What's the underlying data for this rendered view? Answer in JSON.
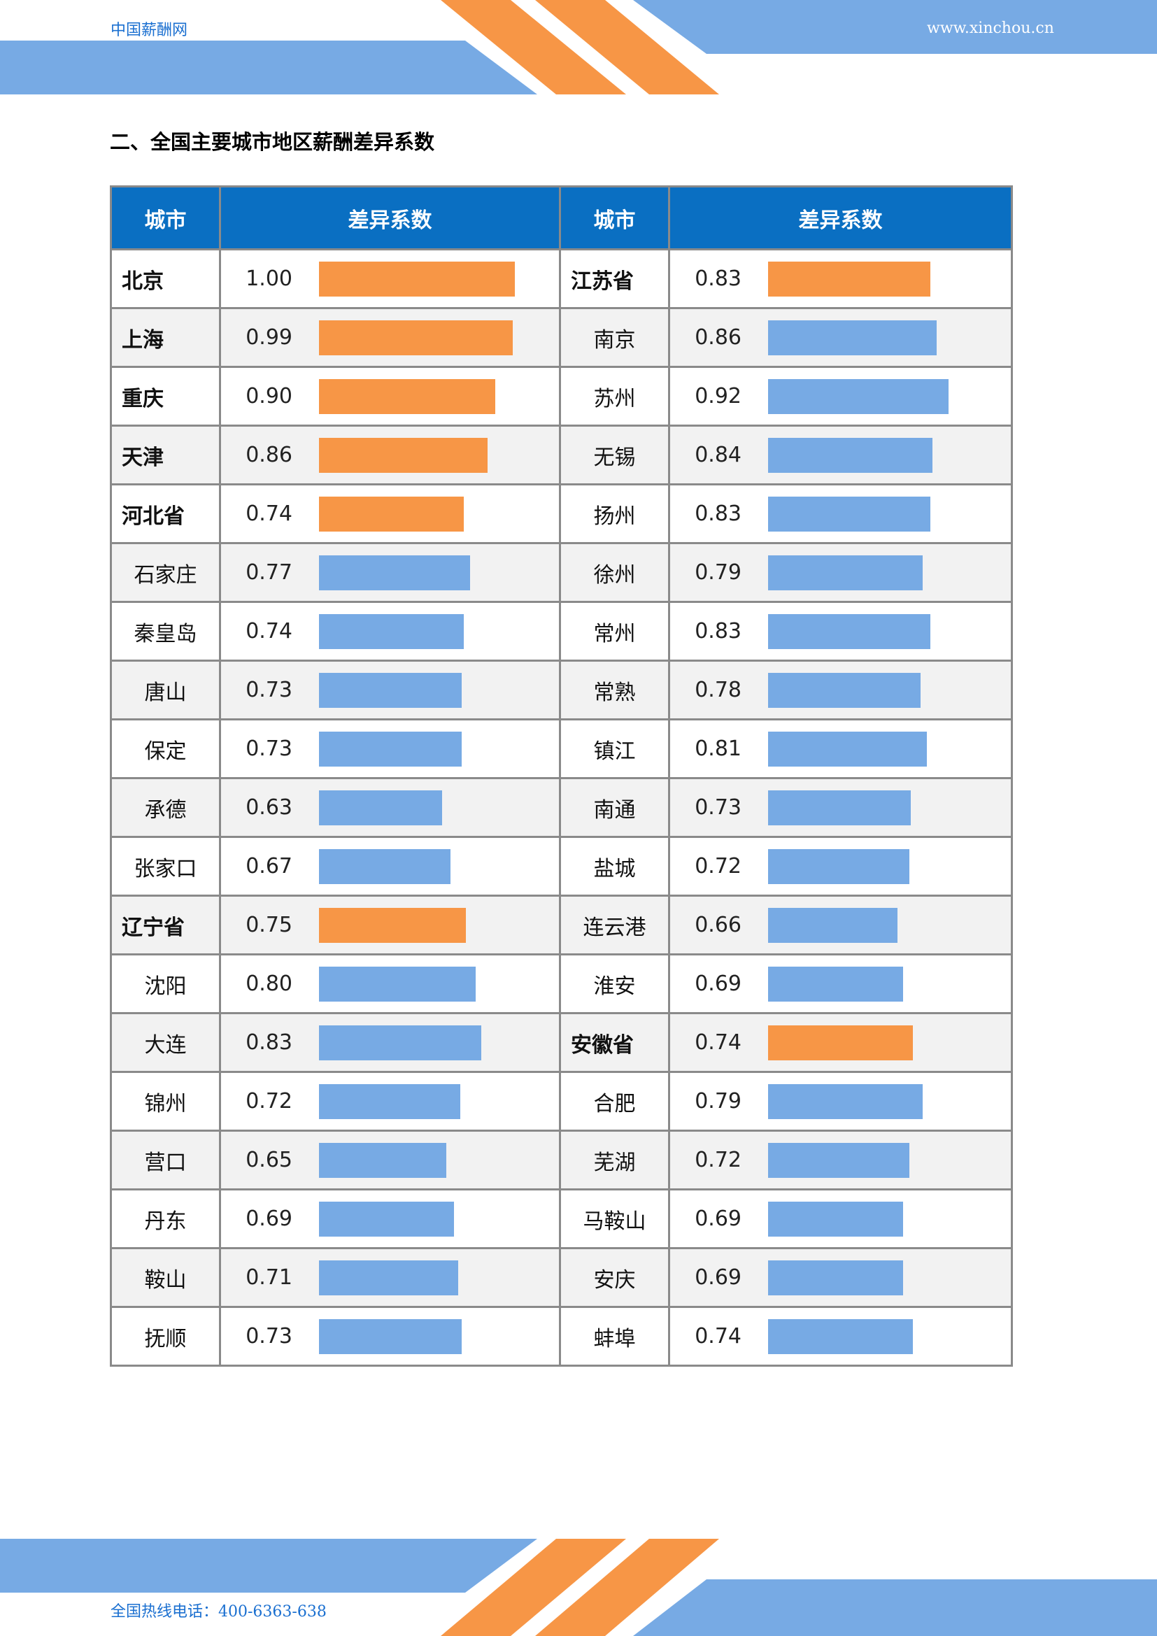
{
  "header": {
    "brand": "中国薪酬网",
    "site": "www.xinchou.cn"
  },
  "heading": "二、全国主要城市地区薪酬差异系数",
  "columns": {
    "city": "城市",
    "coef": "差异系数"
  },
  "colors": {
    "province": "#F79646",
    "city": "#77AAE4",
    "header": "#0A6FC2",
    "band": "#77AAE4",
    "stripe": "#F79646"
  },
  "rows": [
    {
      "left": {
        "name": "北京",
        "value": "1.00",
        "province": true
      },
      "right": {
        "name": "江苏省",
        "value": "0.83",
        "province": true
      }
    },
    {
      "left": {
        "name": "上海",
        "value": "0.99",
        "province": true
      },
      "right": {
        "name": "南京",
        "value": "0.86",
        "province": false
      }
    },
    {
      "left": {
        "name": "重庆",
        "value": "0.90",
        "province": true
      },
      "right": {
        "name": "苏州",
        "value": "0.92",
        "province": false
      }
    },
    {
      "left": {
        "name": "天津",
        "value": "0.86",
        "province": true
      },
      "right": {
        "name": "无锡",
        "value": "0.84",
        "province": false
      }
    },
    {
      "left": {
        "name": "河北省",
        "value": "0.74",
        "province": true
      },
      "right": {
        "name": "扬州",
        "value": "0.83",
        "province": false
      }
    },
    {
      "left": {
        "name": "石家庄",
        "value": "0.77",
        "province": false
      },
      "right": {
        "name": "徐州",
        "value": "0.79",
        "province": false
      }
    },
    {
      "left": {
        "name": "秦皇岛",
        "value": "0.74",
        "province": false
      },
      "right": {
        "name": "常州",
        "value": "0.83",
        "province": false
      }
    },
    {
      "left": {
        "name": "唐山",
        "value": "0.73",
        "province": false
      },
      "right": {
        "name": "常熟",
        "value": "0.78",
        "province": false
      }
    },
    {
      "left": {
        "name": "保定",
        "value": "0.73",
        "province": false
      },
      "right": {
        "name": "镇江",
        "value": "0.81",
        "province": false
      }
    },
    {
      "left": {
        "name": "承德",
        "value": "0.63",
        "province": false
      },
      "right": {
        "name": "南通",
        "value": "0.73",
        "province": false
      }
    },
    {
      "left": {
        "name": "张家口",
        "value": "0.67",
        "province": false
      },
      "right": {
        "name": "盐城",
        "value": "0.72",
        "province": false
      }
    },
    {
      "left": {
        "name": "辽宁省",
        "value": "0.75",
        "province": true
      },
      "right": {
        "name": "连云港",
        "value": "0.66",
        "province": false
      }
    },
    {
      "left": {
        "name": "沈阳",
        "value": "0.80",
        "province": false
      },
      "right": {
        "name": "淮安",
        "value": "0.69",
        "province": false
      }
    },
    {
      "left": {
        "name": "大连",
        "value": "0.83",
        "province": false
      },
      "right": {
        "name": "安徽省",
        "value": "0.74",
        "province": true
      }
    },
    {
      "left": {
        "name": "锦州",
        "value": "0.72",
        "province": false
      },
      "right": {
        "name": "合肥",
        "value": "0.79",
        "province": false
      }
    },
    {
      "left": {
        "name": "营口",
        "value": "0.65",
        "province": false
      },
      "right": {
        "name": "芜湖",
        "value": "0.72",
        "province": false
      }
    },
    {
      "left": {
        "name": "丹东",
        "value": "0.69",
        "province": false
      },
      "right": {
        "name": "马鞍山",
        "value": "0.69",
        "province": false
      }
    },
    {
      "left": {
        "name": "鞍山",
        "value": "0.71",
        "province": false
      },
      "right": {
        "name": "安庆",
        "value": "0.69",
        "province": false
      }
    },
    {
      "left": {
        "name": "抚顺",
        "value": "0.73",
        "province": false
      },
      "right": {
        "name": "蚌埠",
        "value": "0.74",
        "province": false
      }
    }
  ],
  "footer": {
    "hotline": "全国热线电话：400-6363-638"
  }
}
